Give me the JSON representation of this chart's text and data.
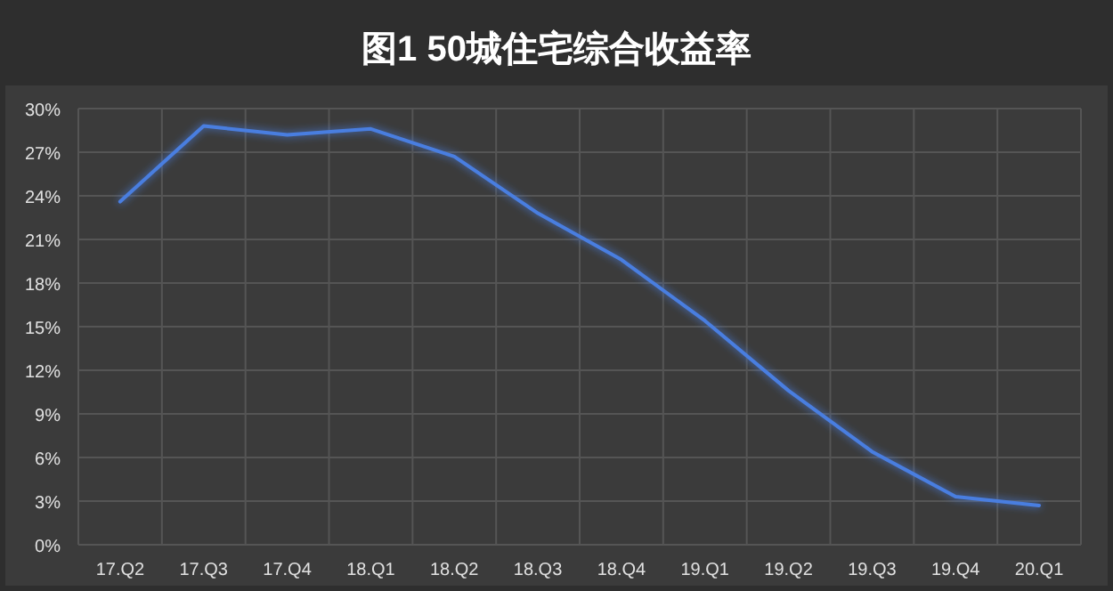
{
  "chart_data": {
    "type": "line",
    "title": "图1  50城住宅综合收益率",
    "categories": [
      "17.Q2",
      "17.Q3",
      "17.Q4",
      "18.Q1",
      "18.Q2",
      "18.Q3",
      "18.Q4",
      "19.Q1",
      "19.Q2",
      "19.Q3",
      "19.Q4",
      "20.Q1"
    ],
    "series": [
      {
        "color": "#4a7ee0",
        "values": [
          23.6,
          28.8,
          28.2,
          28.6,
          26.7,
          22.8,
          19.6,
          15.4,
          10.6,
          6.4,
          3.3,
          2.7
        ]
      }
    ],
    "ylim": [
      0,
      30
    ],
    "yticks": [
      {
        "value": 0,
        "label": "0%"
      },
      {
        "value": 3,
        "label": "3%"
      },
      {
        "value": 6,
        "label": "6%"
      },
      {
        "value": 9,
        "label": "9%"
      },
      {
        "value": 12,
        "label": "12%"
      },
      {
        "value": 15,
        "label": "15%"
      },
      {
        "value": 18,
        "label": "18%"
      },
      {
        "value": 21,
        "label": "21%"
      },
      {
        "value": 24,
        "label": "24%"
      },
      {
        "value": 27,
        "label": "27%"
      },
      {
        "value": 30,
        "label": "30%"
      }
    ],
    "grid": true,
    "marker": "none",
    "line_style": "solid"
  }
}
